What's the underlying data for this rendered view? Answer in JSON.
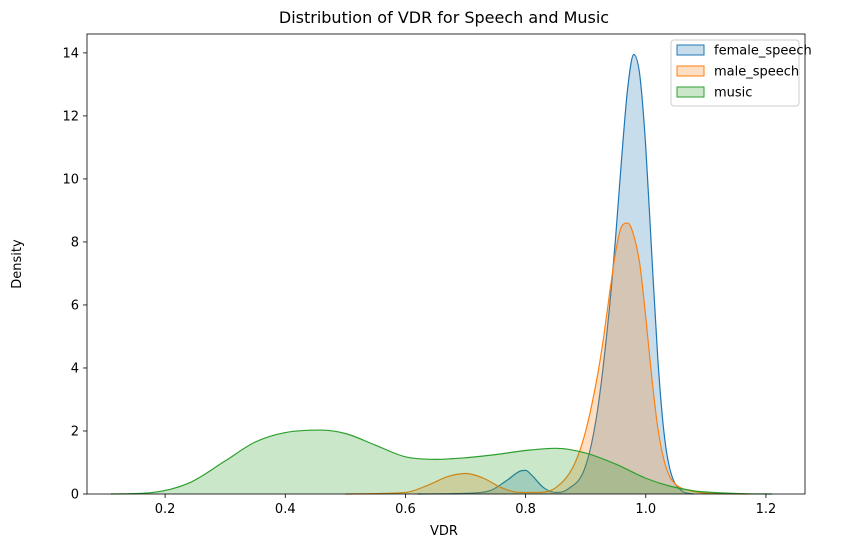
{
  "chart_data": {
    "type": "area",
    "title": "Distribution of VDR for Speech and Music",
    "xlabel": "VDR",
    "ylabel": "Density",
    "xlim": [
      0.07,
      1.265
    ],
    "ylim": [
      0,
      14.6
    ],
    "xticks": [
      0.2,
      0.4,
      0.6,
      0.8,
      1.0,
      1.2
    ],
    "xtick_labels": [
      "0.2",
      "0.4",
      "0.6",
      "0.8",
      "1.0",
      "1.2"
    ],
    "yticks": [
      0,
      2,
      4,
      6,
      8,
      10,
      12,
      14
    ],
    "ytick_labels": [
      "0",
      "2",
      "4",
      "6",
      "8",
      "10",
      "12",
      "14"
    ],
    "grid": false,
    "legend_position": "top-right",
    "series": [
      {
        "name": "female_speech",
        "color": "#1f77b4",
        "x": [
          0.62,
          0.7,
          0.74,
          0.77,
          0.79,
          0.8,
          0.81,
          0.83,
          0.85,
          0.87,
          0.9,
          0.92,
          0.94,
          0.95,
          0.96,
          0.97,
          0.98,
          0.99,
          1.0,
          1.01,
          1.02,
          1.03,
          1.04,
          1.06,
          1.08
        ],
        "y": [
          0,
          0.02,
          0.1,
          0.45,
          0.72,
          0.75,
          0.6,
          0.2,
          0.05,
          0.15,
          0.9,
          2.7,
          6.0,
          8.2,
          10.7,
          12.9,
          13.95,
          13.3,
          11.0,
          7.6,
          4.3,
          2.0,
          0.8,
          0.1,
          0
        ]
      },
      {
        "name": "male_speech",
        "color": "#ff7f0e",
        "x": [
          0.5,
          0.6,
          0.64,
          0.67,
          0.7,
          0.73,
          0.76,
          0.79,
          0.82,
          0.85,
          0.88,
          0.9,
          0.92,
          0.93,
          0.94,
          0.95,
          0.96,
          0.97,
          0.98,
          0.99,
          1.0,
          1.01,
          1.02,
          1.03,
          1.04,
          1.05,
          1.06,
          1.08,
          1.1,
          1.13,
          1.17
        ],
        "y": [
          0,
          0.05,
          0.3,
          0.55,
          0.65,
          0.5,
          0.2,
          0.05,
          0.05,
          0.2,
          0.9,
          2.0,
          3.8,
          5.0,
          6.4,
          7.7,
          8.5,
          8.6,
          8.2,
          7.3,
          5.6,
          3.7,
          2.1,
          1.1,
          0.55,
          0.3,
          0.18,
          0.08,
          0.03,
          0.01,
          0
        ]
      },
      {
        "name": "music",
        "color": "#2ca02c",
        "x": [
          0.11,
          0.18,
          0.24,
          0.3,
          0.35,
          0.4,
          0.46,
          0.5,
          0.55,
          0.6,
          0.65,
          0.7,
          0.75,
          0.8,
          0.85,
          0.9,
          0.95,
          1.0,
          1.04,
          1.08,
          1.12,
          1.16,
          1.21
        ],
        "y": [
          0,
          0.05,
          0.35,
          1.05,
          1.65,
          1.95,
          2.03,
          1.92,
          1.55,
          1.18,
          1.1,
          1.15,
          1.25,
          1.38,
          1.45,
          1.3,
          0.95,
          0.5,
          0.25,
          0.1,
          0.04,
          0.01,
          0
        ]
      }
    ]
  }
}
